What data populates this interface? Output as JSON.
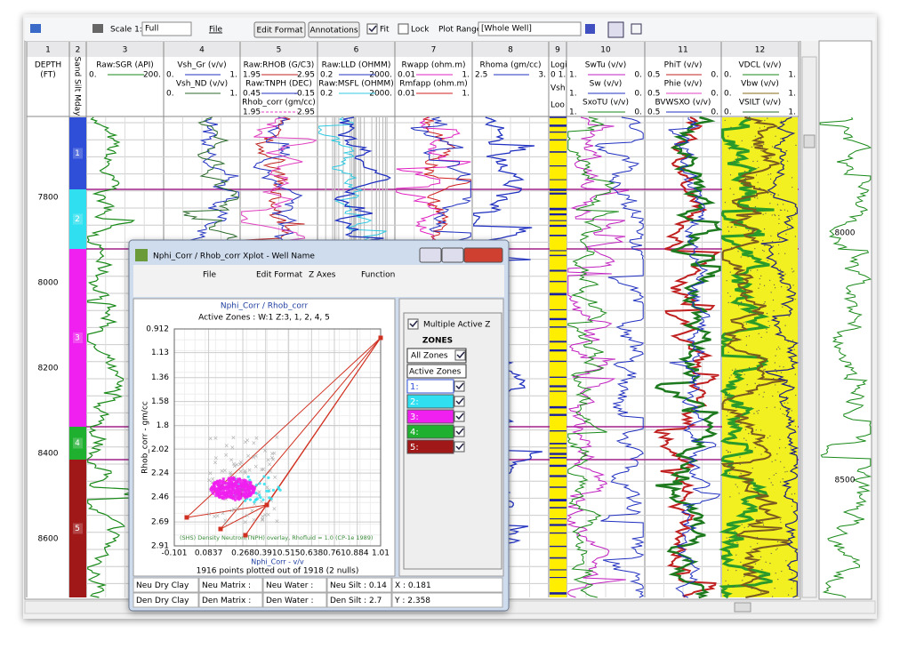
{
  "toolbar": {
    "scale_label": "Scale 1:",
    "scale_value": "Full",
    "file": "File",
    "edit_format": "Edit Format",
    "annotations": "Annotations",
    "fit": "Fit",
    "lock": "Lock",
    "plot_range_label": "Plot Range",
    "plot_range_value": "[Whole Well]"
  },
  "columns": [
    {
      "number": 1,
      "lines": [
        "DEPTH",
        "(FT)"
      ]
    },
    {
      "number": 2,
      "lines": [
        "Sand Silt Mday"
      ]
    },
    {
      "number": 3,
      "curves": [
        {
          "name": "Raw:SGR (API)",
          "left": "0.",
          "right": "200.",
          "color": "#1a8a1a"
        }
      ]
    },
    {
      "number": 4,
      "curves": [
        {
          "name": "Vsh_Gr (v/v)",
          "left": "0.",
          "right": "1.",
          "color": "#2030c0"
        },
        {
          "name": "Vsh_ND (v/v)",
          "left": "0.",
          "right": "1.",
          "color": "#2a6a2a"
        }
      ]
    },
    {
      "number": 5,
      "curves": [
        {
          "name": "Raw:RHOB (G/C3)",
          "left": "1.95",
          "right": "2.95",
          "color": "#c02020"
        },
        {
          "name": "Raw:TNPH (DEC)",
          "left": "0.45",
          "right": "-0.15",
          "color": "#2030c0"
        },
        {
          "name": "Rhob_corr (gm/cc)",
          "left": "1.95",
          "right": "2.95",
          "color": "#e040c0"
        }
      ]
    },
    {
      "number": 6,
      "curves": [
        {
          "name": "Raw:LLD (OHMM)",
          "left": "0.2",
          "right": "2000.",
          "color": "#2030c0"
        },
        {
          "name": "Raw:MSFL (OHMM)",
          "left": "0.2",
          "right": "2000.",
          "color": "#30c8e0"
        }
      ]
    },
    {
      "number": 7,
      "curves": [
        {
          "name": "Rwapp (ohm.m)",
          "left": "0.01",
          "right": "1.",
          "color": "#e020c0"
        },
        {
          "name": "Rmfapp (ohm.m)",
          "left": "0.01",
          "right": "1.",
          "color": "#d02020"
        }
      ]
    },
    {
      "number": 8,
      "curves": [
        {
          "name": "Rhoma (gm/cc)",
          "left": "2.5",
          "right": "3.",
          "color": "#2030c0"
        }
      ]
    },
    {
      "number": 9,
      "lines": [
        "Logi",
        "0 1.",
        "Vsh",
        "Loo"
      ]
    },
    {
      "number": 10,
      "curves": [
        {
          "name": "SwTu (v/v)",
          "left": "1.",
          "right": "0.",
          "color": "#c020c0"
        },
        {
          "name": "Sw (v/v)",
          "left": "1.",
          "right": "0.",
          "color": "#2030c0"
        },
        {
          "name": "SxoTU (v/v)",
          "left": "1.",
          "right": "0.",
          "color": "#1a8a1a"
        }
      ]
    },
    {
      "number": 11,
      "curves": [
        {
          "name": "PhiT (v/v)",
          "left": "0.5",
          "right": "0.",
          "color": "#c02020"
        },
        {
          "name": "Phie (v/v)",
          "left": "0.5",
          "right": "0.",
          "color": "#e040c0"
        },
        {
          "name": "BVWSXO (v/v)",
          "left": "0.5",
          "right": "0.",
          "color": "#2030c0"
        }
      ]
    },
    {
      "number": 12,
      "curves": [
        {
          "name": "VDCL (v/v)",
          "left": "0.",
          "right": "1.",
          "color": "#1a8a1a"
        },
        {
          "name": "Vbw (v/v)",
          "left": "0.",
          "right": "1.",
          "color": "#8a6a1a"
        },
        {
          "name": "VSILT (v/v)",
          "left": "0.",
          "right": "1.",
          "color": "#2a6a2a"
        }
      ]
    }
  ],
  "depth_labels": [
    7800,
    8000,
    8200,
    8400,
    8600
  ],
  "overview_labels": [
    "8000",
    "8500"
  ],
  "zones": [
    {
      "name": "1",
      "panel_label": "1:",
      "color": "#2f4fd8"
    },
    {
      "name": "2",
      "panel_label": "2:",
      "color": "#30e0f0"
    },
    {
      "name": "3",
      "panel_label": "3:",
      "color": "#f020f0"
    },
    {
      "name": "4",
      "panel_label": "4:",
      "color": "#20b030"
    },
    {
      "name": "5",
      "panel_label": "5:",
      "color": "#a01818"
    }
  ],
  "xplot": {
    "window_title": "Nphi_Corr / Rhob_corr Xplot  -  Well Name",
    "menu": [
      "File",
      "Edit Format",
      "Z Axes",
      "Function"
    ],
    "title": "Nphi_Corr / Rhob_corr",
    "subtitle": "Active Zones :   W:1 Z:3, 1, 2, 4, 5",
    "x_label": "Nphi_Corr - v/v",
    "y_label": "Rhob_corr - gm/cc",
    "footnote": "1916 points plotted out of 1918 (2 nulls)",
    "overlay_note": "(SHS) Density Neutron(TNPH) overlay, Rhofluid = 1.0 (CP-1e 1989)",
    "xlim": [
      -0.101,
      1.01
    ],
    "xticks": [
      -0.101,
      0.0837,
      0.268,
      0.391,
      0.515,
      0.638,
      0.761,
      0.884,
      1.01
    ],
    "ylim": [
      0.912,
      2.91
    ],
    "yticks": [
      0.912,
      1.13,
      1.36,
      1.58,
      1.8,
      2.02,
      2.24,
      2.46,
      2.69,
      2.91
    ],
    "multiple_active": "Multiple Active Z",
    "zones_header": "ZONES",
    "all_zones": "All Zones",
    "active_zones": "Active Zones",
    "status": [
      [
        "Neu Dry Clay",
        "Neu Matrix :",
        "Neu Water :",
        "Neu Silt : 0.14",
        "X : 0.181"
      ],
      [
        "Den Dry Clay",
        "Den Matrix :",
        "Den Water :",
        "Den Silt : 2.7",
        "Y : 2.358"
      ]
    ]
  }
}
